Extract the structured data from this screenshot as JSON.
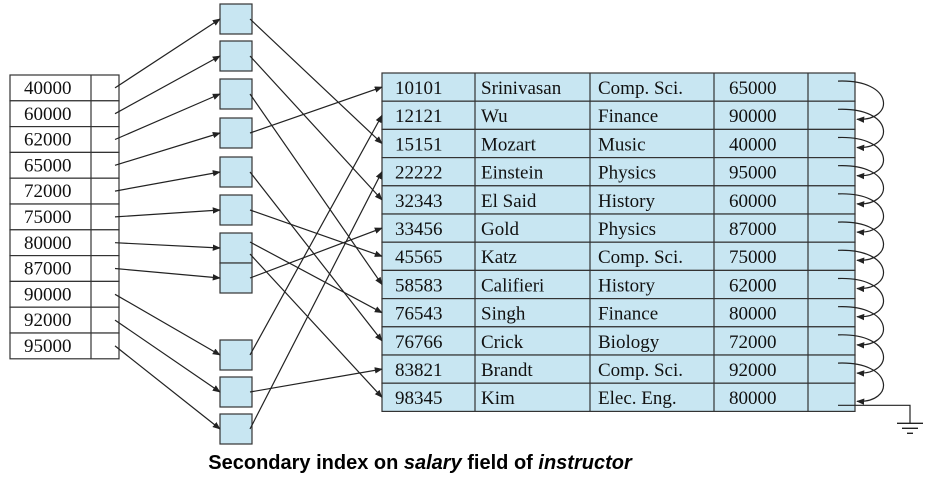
{
  "index_keys": [
    "40000",
    "60000",
    "62000",
    "65000",
    "72000",
    "75000",
    "80000",
    "87000",
    "90000",
    "92000",
    "95000"
  ],
  "records": [
    {
      "id": "10101",
      "name": "Srinivasan",
      "dept": "Comp. Sci.",
      "salary": "65000"
    },
    {
      "id": "12121",
      "name": "Wu",
      "dept": "Finance",
      "salary": "90000"
    },
    {
      "id": "15151",
      "name": "Mozart",
      "dept": "Music",
      "salary": "40000"
    },
    {
      "id": "22222",
      "name": "Einstein",
      "dept": "Physics",
      "salary": "95000"
    },
    {
      "id": "32343",
      "name": "El Said",
      "dept": "History",
      "salary": "60000"
    },
    {
      "id": "33456",
      "name": "Gold",
      "dept": "Physics",
      "salary": "87000"
    },
    {
      "id": "45565",
      "name": "Katz",
      "dept": "Comp. Sci.",
      "salary": "75000"
    },
    {
      "id": "58583",
      "name": "Califieri",
      "dept": "History",
      "salary": "62000"
    },
    {
      "id": "76543",
      "name": "Singh",
      "dept": "Finance",
      "salary": "80000"
    },
    {
      "id": "76766",
      "name": "Crick",
      "dept": "Biology",
      "salary": "72000"
    },
    {
      "id": "83821",
      "name": "Brandt",
      "dept": "Comp. Sci.",
      "salary": "92000"
    },
    {
      "id": "98345",
      "name": "Kim",
      "dept": "Elec. Eng.",
      "salary": "80000"
    }
  ],
  "caption": {
    "part1": "Secondary index on ",
    "field": "salary",
    "part2": " field of ",
    "relation": "instructor"
  },
  "colors": {
    "cell_fill": "#c8e6f2",
    "stroke": "#333333",
    "arrow": "#222222"
  }
}
